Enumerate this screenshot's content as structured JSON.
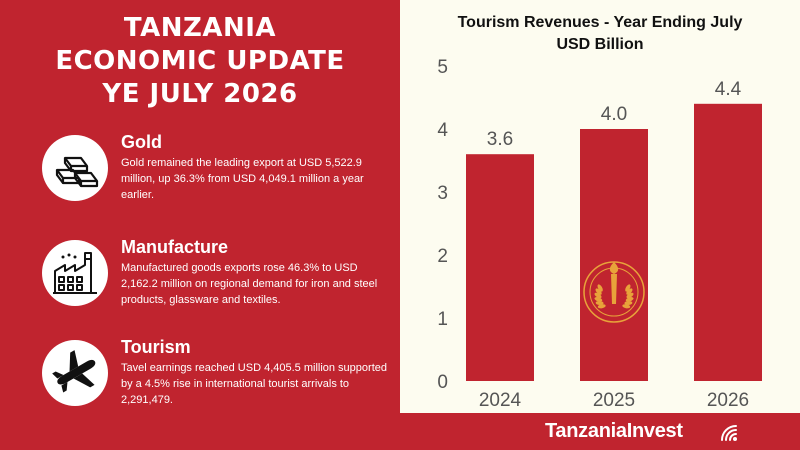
{
  "header": {
    "title_lines": [
      "TANZANIA",
      "ECONOMIC UPDATE",
      "YE JULY 2026"
    ]
  },
  "sections": [
    {
      "icon": "gold-bars-icon",
      "heading": "Gold",
      "text": "Gold remained the leading export at USD 5,522.9 million, up 36.3% from USD 4,049.1 million a year earlier."
    },
    {
      "icon": "factory-icon",
      "heading": "Manufacture",
      "text": "Manufactured goods exports rose 46.3% to USD 2,162.2 million on regional demand for iron and steel products, glassware and textiles."
    },
    {
      "icon": "airplane-icon",
      "heading": "Tourism",
      "text": "Tavel earnings reached USD 4,405.5 million supported by a 4.5% rise in international tourist arrivals to 2,291,479."
    }
  ],
  "chart_data": {
    "type": "bar",
    "title_lines": [
      "Tourism Revenues - Year Ending July",
      "USD Billion"
    ],
    "categories": [
      "2024",
      "2025",
      "2026"
    ],
    "values": [
      3.6,
      4.0,
      4.4
    ],
    "data_labels": [
      "3.6",
      "4.0",
      "4.4"
    ],
    "ylim": [
      0,
      5
    ],
    "yticks": [
      0,
      1,
      2,
      3,
      4,
      5
    ],
    "grid": false,
    "legend": "none",
    "bar_color": "#c0242f",
    "watermark": "Bank of Tanzania seal"
  },
  "footer": {
    "brand": "TanzaniaInvest",
    "brand_icon": "wifi-signal-icon"
  },
  "colors": {
    "primary_red": "#c0242f",
    "panel_background": "#fdfcf0",
    "text_white": "#ffffff",
    "axis_text": "#555555",
    "seal_gold": "#e8a33a"
  }
}
